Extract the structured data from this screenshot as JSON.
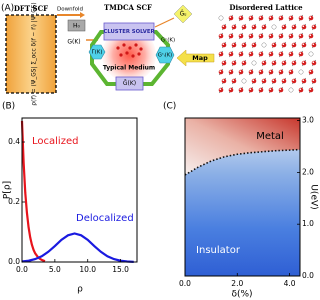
{
  "panel_a": {
    "label": "(A)",
    "dft": {
      "title": "DFT SCF",
      "formula": "ρ(r⃗) = ⟨Ψ_GS| Σ_occ δ(r⃗ − r⃗ᵢ) |Ψ_GS⟩"
    },
    "downfold": "Downfold",
    "h0": "H₀",
    "g_k": "G(K)",
    "tmdca": {
      "title": "TMDCA SCF",
      "cluster_solver": "CLUSTER SOLVER",
      "g_ij": "Ĝᵢⱼ",
      "gc_k": "Gᶜ(K)",
      "gamma": "Γ(K)",
      "gic": "Gᶜᵢ(K)",
      "typical_medium": "Typical Medium",
      "gbar": "Ḡ(K)"
    },
    "map": "Map",
    "lattice": {
      "title": "Disordered Lattice"
    }
  },
  "chart_data": [
    {
      "type": "line",
      "label": "(B)",
      "xlabel": "ρ",
      "ylabel": "P[ρ]",
      "xlim": [
        0,
        17.5
      ],
      "ylim": [
        0,
        0.48
      ],
      "xticks": [
        {
          "value": 0,
          "label": "0.0"
        },
        {
          "value": 5,
          "label": "5.0"
        },
        {
          "value": 10,
          "label": "10.0"
        },
        {
          "value": 15,
          "label": "15.0"
        }
      ],
      "yticks": [
        {
          "value": 0,
          "label": "0.0"
        },
        {
          "value": 0.2,
          "label": "0.2"
        },
        {
          "value": 0.4,
          "label": "0.4"
        }
      ],
      "yaxis": "left",
      "series": [
        {
          "name": "Localized",
          "color": "#e8141c",
          "x": [
            0,
            0.25,
            0.5,
            0.75,
            1,
            1.25,
            1.5,
            1.75,
            2,
            2.5,
            3,
            3.5
          ],
          "values": [
            0.47,
            0.33,
            0.23,
            0.164,
            0.116,
            0.082,
            0.058,
            0.041,
            0.029,
            0.014,
            0.007,
            0.003
          ]
        },
        {
          "name": "Delocalized",
          "color": "#1a1ae0",
          "x": [
            0,
            1,
            2,
            3,
            4,
            5,
            6,
            7,
            8,
            9,
            10,
            11,
            12,
            13,
            14,
            15,
            16,
            17
          ],
          "values": [
            0.0016,
            0.0042,
            0.0096,
            0.019,
            0.034,
            0.053,
            0.074,
            0.089,
            0.095,
            0.089,
            0.074,
            0.053,
            0.034,
            0.019,
            0.0096,
            0.0042,
            0.0016,
            0.0005
          ]
        }
      ]
    },
    {
      "type": "heatmap",
      "label": "(C)",
      "xlabel": "δ(%)",
      "ylabel": "U(eV)",
      "xlim": [
        0,
        4.4
      ],
      "ylim": [
        0,
        3.05
      ],
      "xticks": [
        {
          "value": 0,
          "label": "0.0"
        },
        {
          "value": 2,
          "label": "2.0"
        },
        {
          "value": 4,
          "label": "4.0"
        }
      ],
      "yticks": [
        {
          "value": 0,
          "label": "0.0"
        },
        {
          "value": 1,
          "label": "1.0"
        },
        {
          "value": 2,
          "label": "2.0"
        },
        {
          "value": 3,
          "label": "3.0"
        }
      ],
      "yaxis": "right",
      "regions": [
        "Metal",
        "Insulator"
      ],
      "series": [
        {
          "color": "#111111",
          "x": [
            0,
            0.5,
            1,
            1.5,
            2,
            2.5,
            3,
            3.5,
            4,
            4.4
          ],
          "values": [
            1.95,
            2.1,
            2.22,
            2.3,
            2.35,
            2.38,
            2.4,
            2.42,
            2.43,
            2.44
          ]
        }
      ]
    }
  ]
}
